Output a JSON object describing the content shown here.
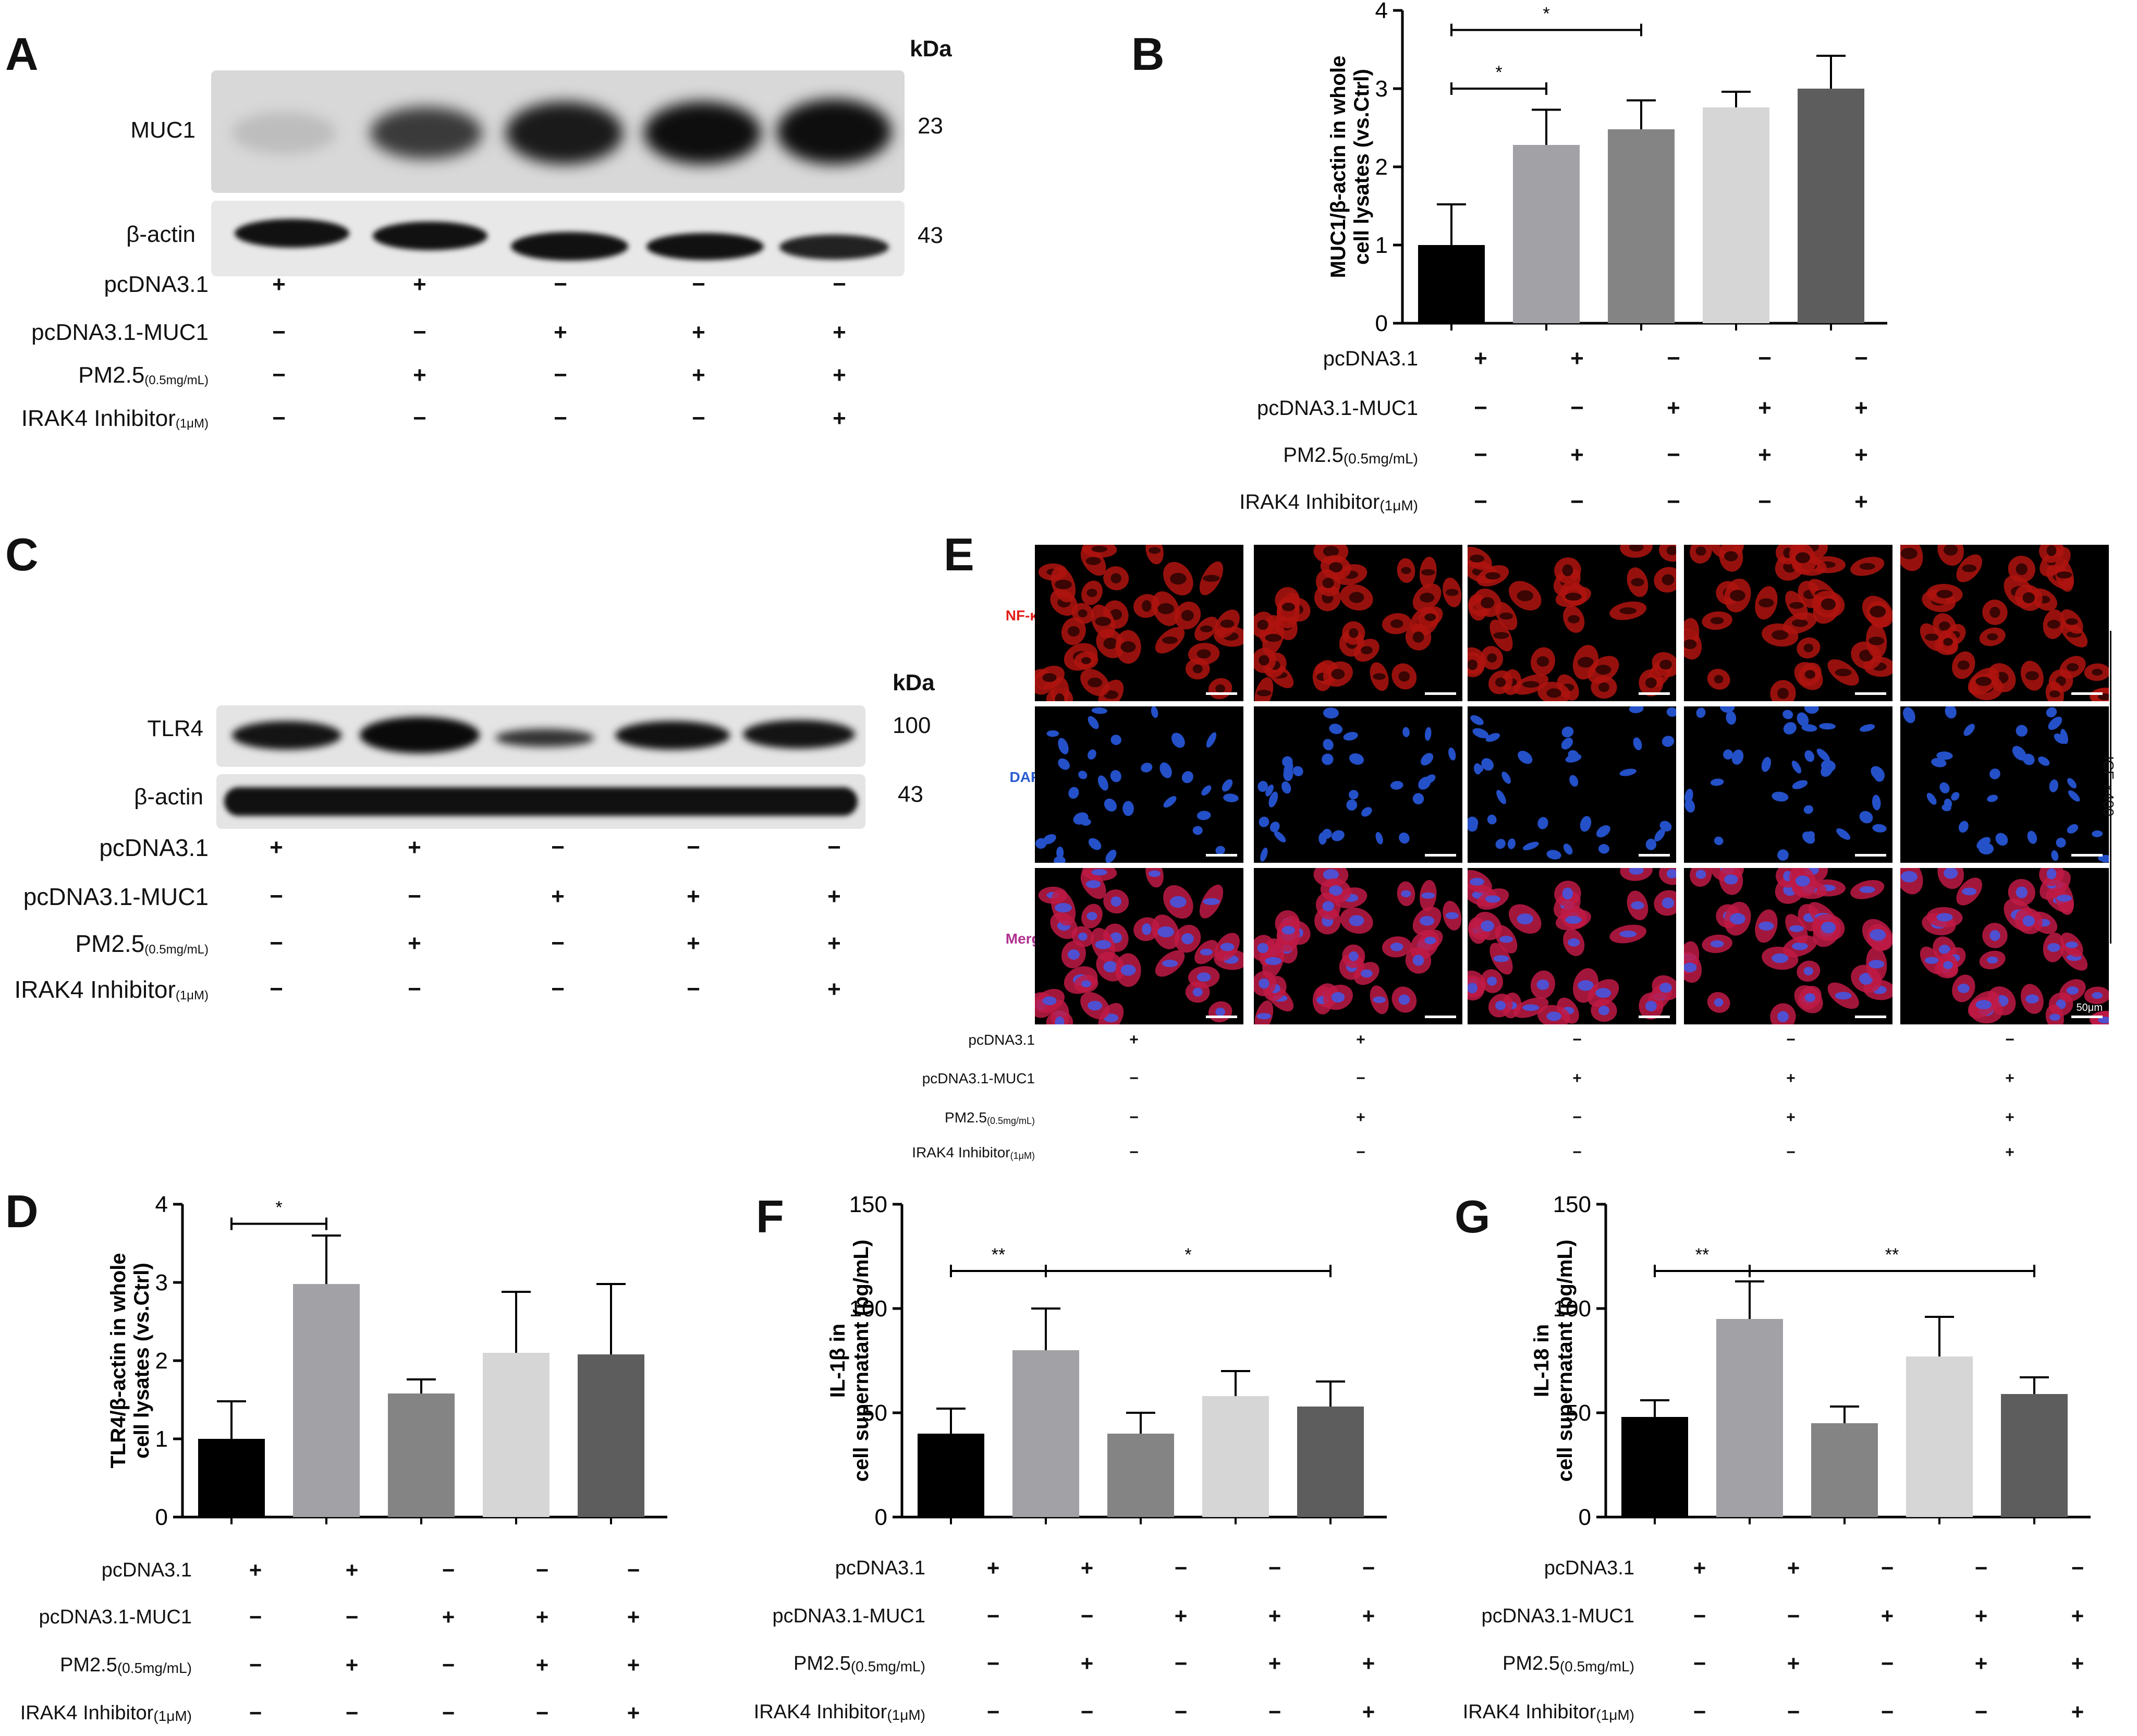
{
  "panels": {
    "A": "A",
    "B": "B",
    "C": "C",
    "D": "D",
    "E": "E",
    "F": "F",
    "G": "G"
  },
  "conditions": {
    "labels": [
      "pcDNA3.1",
      "pcDNA3.1-MUC1",
      "PM2.5",
      "IRAK4 Inhibitor"
    ],
    "subs": [
      "",
      "",
      "(0.5mg/mL)",
      "(1μM)"
    ],
    "symbols": [
      [
        "+",
        "+",
        "−",
        "−",
        "−"
      ],
      [
        "−",
        "−",
        "+",
        "+",
        "+"
      ],
      [
        "−",
        "+",
        "−",
        "+",
        "+"
      ],
      [
        "−",
        "−",
        "−",
        "−",
        "+"
      ]
    ]
  },
  "blot_A": {
    "kda_label": "kDa",
    "rows": [
      {
        "name": "MUC1",
        "kda": "23"
      },
      {
        "name": "β-actin",
        "kda": "43"
      }
    ]
  },
  "blot_C": {
    "kda_label": "kDa",
    "rows": [
      {
        "name": "TLR4",
        "kda": "100"
      },
      {
        "name": "β-actin",
        "kda": "43"
      }
    ]
  },
  "if_E": {
    "rows": [
      "NF-κB",
      "DAPI",
      "Merge"
    ],
    "row_colors": [
      "#e0201a",
      "#2a5bd0",
      "#b0308f"
    ],
    "side_label": "ICF ×400",
    "scale_label": "50μm"
  },
  "bar_colors": [
    "#000000",
    "#a2a2a6",
    "#848485",
    "#d6d6d6",
    "#5d5d5d"
  ],
  "chart_data": [
    {
      "panel": "B",
      "type": "bar",
      "ylabel": "MUC1/β-actin in whole\ncell lysates (vs.Ctrl)",
      "ylim": [
        0,
        4
      ],
      "yticks": [
        0,
        1,
        2,
        3,
        4
      ],
      "values": [
        1.0,
        2.28,
        2.48,
        2.76,
        3.0
      ],
      "errors": [
        0.52,
        0.45,
        0.37,
        0.2,
        0.42
      ],
      "sig": [
        {
          "from": 0,
          "to": 1,
          "label": "*"
        },
        {
          "from": 0,
          "to": 2,
          "label": "*"
        }
      ]
    },
    {
      "panel": "D",
      "type": "bar",
      "ylabel": "TLR4/β-actin in whole\ncell lysates (vs.Ctrl)",
      "ylim": [
        0,
        4
      ],
      "yticks": [
        0,
        1,
        2,
        3,
        4
      ],
      "values": [
        1.0,
        2.98,
        1.58,
        2.1,
        2.08
      ],
      "errors": [
        0.48,
        0.62,
        0.18,
        0.78,
        0.9
      ],
      "sig": [
        {
          "from": 0,
          "to": 1,
          "label": "*"
        }
      ]
    },
    {
      "panel": "F",
      "type": "bar",
      "ylabel": "IL-1β in\ncell supernatant (pg/mL)",
      "ylim": [
        0,
        150
      ],
      "yticks": [
        0,
        50,
        100,
        150
      ],
      "values": [
        40,
        80,
        40,
        58,
        53
      ],
      "errors": [
        12,
        20,
        10,
        12,
        12
      ],
      "sig": [
        {
          "from": 0,
          "to": 1,
          "label": "**"
        },
        {
          "from": 1,
          "to": 4,
          "label": "*"
        }
      ]
    },
    {
      "panel": "G",
      "type": "bar",
      "ylabel": "IL-18 in\ncell supernatant (pg/mL)",
      "ylim": [
        0,
        150
      ],
      "yticks": [
        0,
        50,
        100,
        150
      ],
      "values": [
        48,
        95,
        45,
        77,
        59
      ],
      "errors": [
        8,
        18,
        8,
        19,
        8
      ],
      "sig": [
        {
          "from": 0,
          "to": 1,
          "label": "**"
        },
        {
          "from": 1,
          "to": 4,
          "label": "**"
        }
      ]
    }
  ]
}
